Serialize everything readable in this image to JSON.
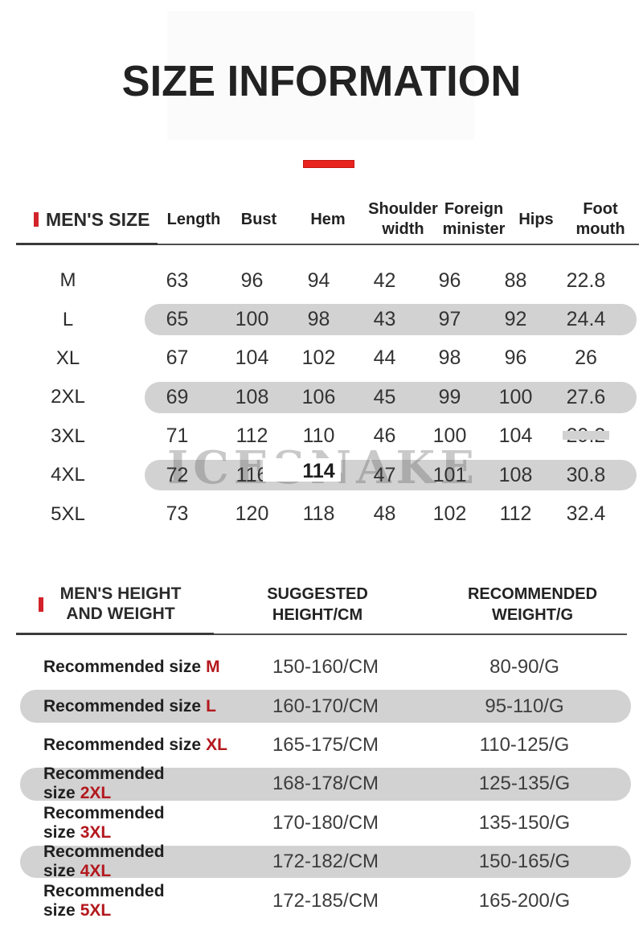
{
  "page": {
    "title": "SIZE INFORMATION"
  },
  "colors": {
    "accent_red": "#e8231d",
    "size_red": "#b3181d",
    "row_highlight_gray": "#d2d2d2"
  },
  "watermark": "ICESNAKE",
  "men_size_table": {
    "section_title": "MEN'S SIZE",
    "columns": [
      "Length",
      "Bust",
      "Hem",
      "Shoulder width",
      "Foreign minister",
      "Hips",
      "Foot mouth"
    ],
    "rows": [
      {
        "size": "M",
        "values": [
          "63",
          "96",
          "94",
          "42",
          "96",
          "88",
          "22.8"
        ]
      },
      {
        "size": "L",
        "values": [
          "65",
          "100",
          "98",
          "43",
          "97",
          "92",
          "24.4"
        ]
      },
      {
        "size": "XL",
        "values": [
          "67",
          "104",
          "102",
          "44",
          "98",
          "96",
          "26"
        ]
      },
      {
        "size": "2XL",
        "values": [
          "69",
          "108",
          "106",
          "45",
          "99",
          "100",
          "27.6"
        ]
      },
      {
        "size": "3XL",
        "values": [
          "71",
          "112",
          "110",
          "46",
          "100",
          "104",
          "29.2"
        ]
      },
      {
        "size": "4XL",
        "values": [
          "72",
          "116",
          "114",
          "47",
          "101",
          "108",
          "30.8"
        ]
      },
      {
        "size": "5XL",
        "values": [
          "73",
          "120",
          "118",
          "48",
          "102",
          "112",
          "32.4"
        ]
      }
    ]
  },
  "height_weight_table": {
    "section_title_line1": "MEN'S HEIGHT",
    "section_title_line2": "AND WEIGHT",
    "col_height_line1": "SUGGESTED",
    "col_height_line2": "HEIGHT/CM",
    "col_weight_line1": "RECOMMENDED",
    "col_weight_line2": "WEIGHT/G",
    "label_prefix": "Recommended size",
    "rows": [
      {
        "size": "M",
        "height": "150-160/CM",
        "weight": "80-90/G"
      },
      {
        "size": "L",
        "height": "160-170/CM",
        "weight": "95-110/G"
      },
      {
        "size": "XL",
        "height": "165-175/CM",
        "weight": "110-125/G"
      },
      {
        "size": "2XL",
        "height": "168-178/CM",
        "weight": "125-135/G"
      },
      {
        "size": "3XL",
        "height": "170-180/CM",
        "weight": "135-150/G"
      },
      {
        "size": "4XL",
        "height": "172-182/CM",
        "weight": "150-165/G"
      },
      {
        "size": "5XL",
        "height": "172-185/CM",
        "weight": "165-200/G"
      }
    ]
  }
}
